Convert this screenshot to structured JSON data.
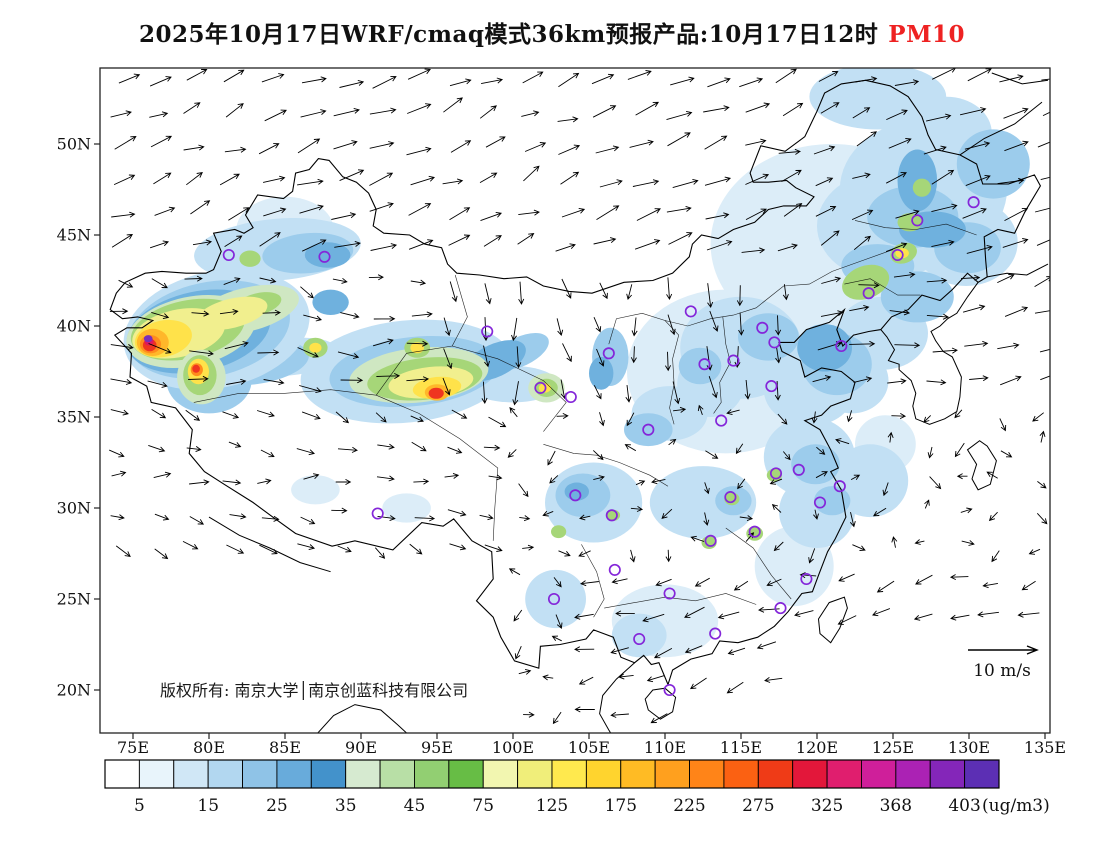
{
  "title": {
    "text": "2025年10月17日WRF/cmaq模式36km预报产品:10月17日12时",
    "pollutant": "PM10",
    "pollutant_color": "#ee2222"
  },
  "copyright": "版权所有: 南京大学│南京创蓝科技有限公司",
  "wind_legend": {
    "label": "10 m/s"
  },
  "axes": {
    "lat_labels": [
      "50N",
      "45N",
      "40N",
      "35N",
      "30N",
      "25N",
      "20N"
    ],
    "lon_labels": [
      "75E",
      "80E",
      "85E",
      "90E",
      "95E",
      "100E",
      "105E",
      "110E",
      "115E",
      "120E",
      "125E",
      "130E",
      "135E"
    ]
  },
  "colorbar": {
    "unit": "(ug/m3)",
    "tick_labels": [
      "5",
      "15",
      "25",
      "35",
      "45",
      "75",
      "125",
      "175",
      "225",
      "275",
      "325",
      "368",
      "403"
    ],
    "colors": [
      "#ffffff",
      "#e8f4fb",
      "#d0e7f6",
      "#b2d7f0",
      "#8fc3e7",
      "#68abdb",
      "#4392cb",
      "#d6ead0",
      "#b8dfa6",
      "#92cf72",
      "#67bd45",
      "#f2f6b0",
      "#f0ee7a",
      "#ffe94e",
      "#ffd42e",
      "#ffbb24",
      "#ffa01e",
      "#ff8418",
      "#fb6112",
      "#ef3b17",
      "#e3173a",
      "#e01e6e",
      "#cf1f9a",
      "#ab22b4",
      "#8426b9",
      "#5c2fb4"
    ]
  },
  "stations": [
    [
      87.6,
      43.8
    ],
    [
      81.3,
      43.9
    ],
    [
      91.1,
      29.7
    ],
    [
      101.8,
      36.6
    ],
    [
      103.8,
      36.1
    ],
    [
      106.3,
      38.5
    ],
    [
      111.7,
      40.8
    ],
    [
      112.6,
      37.9
    ],
    [
      114.5,
      38.1
    ],
    [
      116.4,
      39.9
    ],
    [
      117.2,
      39.1
    ],
    [
      117.0,
      36.7
    ],
    [
      113.7,
      34.8
    ],
    [
      108.9,
      34.3
    ],
    [
      104.1,
      30.7
    ],
    [
      106.5,
      29.6
    ],
    [
      114.3,
      30.6
    ],
    [
      113.0,
      28.2
    ],
    [
      115.9,
      28.7
    ],
    [
      117.3,
      31.9
    ],
    [
      118.8,
      32.1
    ],
    [
      121.5,
      31.2
    ],
    [
      120.2,
      30.3
    ],
    [
      119.3,
      26.1
    ],
    [
      113.3,
      23.1
    ],
    [
      108.3,
      22.8
    ],
    [
      106.7,
      26.6
    ],
    [
      102.7,
      25.0
    ],
    [
      110.3,
      20.0
    ],
    [
      126.6,
      45.8
    ],
    [
      125.3,
      43.9
    ],
    [
      123.4,
      41.8
    ],
    [
      121.6,
      38.9
    ],
    [
      130.3,
      46.8
    ],
    [
      117.6,
      24.5
    ],
    [
      110.3,
      25.3
    ],
    [
      98.3,
      39.7
    ]
  ],
  "field_regions": [
    [
      114,
      37.5,
      6.5,
      4.5,
      0,
      "#dcedf8"
    ],
    [
      121,
      44.5,
      8,
      5.5,
      0,
      "#dcedf8"
    ],
    [
      85,
      45.3,
      3.2,
      1.8,
      0,
      "#dcedf8"
    ],
    [
      110,
      23.8,
      3.5,
      2,
      0,
      "#dcedf8"
    ],
    [
      118.5,
      26.8,
      2.6,
      2.2,
      0,
      "#dcedf8"
    ],
    [
      87,
      31,
      1.6,
      0.8,
      0,
      "#dcedf8"
    ],
    [
      93,
      30,
      1.6,
      0.8,
      0,
      "#dcedf8"
    ],
    [
      124.5,
      33.5,
      2,
      1.6,
      0,
      "#dcedf8"
    ],
    [
      127,
      47.5,
      5.5,
      3.8,
      0,
      "#c2e0f4"
    ],
    [
      124.5,
      45.5,
      4.5,
      3,
      0,
      "#c2e0f4"
    ],
    [
      129.8,
      44.6,
      3.4,
      2.4,
      0,
      "#c2e0f4"
    ],
    [
      124,
      52.6,
      4.5,
      1.8,
      0,
      "#c2e0f4"
    ],
    [
      128.5,
      50.6,
      3,
      2,
      0,
      "#c2e0f4"
    ],
    [
      124.3,
      39.6,
      3,
      2,
      0,
      "#c2e0f4"
    ],
    [
      115,
      38.8,
      4,
      2.8,
      0,
      "#c2e0f4"
    ],
    [
      113,
      36.8,
      2.2,
      1.8,
      0,
      "#c2e0f4"
    ],
    [
      110.3,
      35.2,
      2.5,
      1.5,
      0,
      "#c2e0f4"
    ],
    [
      119.5,
      36.5,
      3,
      2,
      0,
      "#c2e0f4"
    ],
    [
      122.3,
      37,
      2.4,
      1.8,
      0,
      "#c2e0f4"
    ],
    [
      119.5,
      32.8,
      3,
      2.2,
      0,
      "#c2e0f4"
    ],
    [
      112.5,
      30.3,
      3.5,
      2,
      0,
      "#c2e0f4"
    ],
    [
      105.3,
      30.3,
      3.2,
      2.2,
      0,
      "#c2e0f4"
    ],
    [
      108.3,
      23,
      1.8,
      1.2,
      0,
      "#c2e0f4"
    ],
    [
      102.8,
      25,
      2,
      1.6,
      0,
      "#c2e0f4"
    ],
    [
      120,
      29.8,
      2.5,
      2,
      0,
      "#c2e0f4"
    ],
    [
      84.5,
      44.2,
      5.5,
      1.7,
      -5,
      "#c2e0f4"
    ],
    [
      93,
      37.5,
      7,
      2.8,
      -6,
      "#c2e0f4"
    ],
    [
      100,
      36.8,
      3,
      1,
      0,
      "#c2e0f4"
    ],
    [
      85.5,
      38.3,
      3,
      1,
      -8,
      "#c2e0f4"
    ],
    [
      123.5,
      31.5,
      2.5,
      2,
      0,
      "#c2e0f4"
    ],
    [
      131.6,
      48.9,
      2.4,
      1.9,
      0,
      "#9cccec"
    ],
    [
      126.3,
      46,
      3,
      1.7,
      0,
      "#9cccec"
    ],
    [
      129.9,
      44.3,
      2.2,
      1.4,
      0,
      "#9cccec"
    ],
    [
      124,
      43.3,
      2.4,
      1.2,
      0,
      "#9cccec"
    ],
    [
      126.6,
      41.6,
      2.4,
      1.4,
      0,
      "#9cccec"
    ],
    [
      116.8,
      39.4,
      2,
      1.3,
      0,
      "#9cccec"
    ],
    [
      112.3,
      37.8,
      1.4,
      1,
      0,
      "#9cccec"
    ],
    [
      108.9,
      34.3,
      1.6,
      0.9,
      0,
      "#9cccec"
    ],
    [
      106.4,
      38.3,
      1.2,
      1.6,
      0,
      "#9cccec"
    ],
    [
      121.3,
      37.9,
      2.3,
      1.7,
      0,
      "#9cccec"
    ],
    [
      119.9,
      32.4,
      1.6,
      1.1,
      0,
      "#9cccec"
    ],
    [
      114.5,
      30.4,
      1.2,
      0.8,
      0,
      "#9cccec"
    ],
    [
      104.6,
      30.7,
      1.8,
      1.2,
      0,
      "#9cccec"
    ],
    [
      86.5,
      44,
      3,
      1.1,
      -5,
      "#9cccec"
    ],
    [
      80,
      37,
      2.8,
      1.8,
      0,
      "#9cccec"
    ],
    [
      83,
      38,
      3.6,
      1.2,
      -8,
      "#9cccec"
    ],
    [
      93.5,
      37.5,
      5.6,
      1.9,
      -6,
      "#9cccec"
    ],
    [
      100.5,
      38.6,
      2,
      0.8,
      -25,
      "#9cccec"
    ],
    [
      121,
      30.4,
      1.2,
      0.8,
      0,
      "#9cccec"
    ],
    [
      126.6,
      48,
      1.3,
      1.7,
      0,
      "#6fb1de"
    ],
    [
      127.6,
      45.3,
      2.2,
      1,
      0,
      "#6fb1de"
    ],
    [
      87.8,
      43.9,
      1.5,
      0.7,
      0,
      "#6fb1de"
    ],
    [
      88,
      41.3,
      1.2,
      0.7,
      0,
      "#6fb1de"
    ],
    [
      98.8,
      38.1,
      2.2,
      0.9,
      -25,
      "#6fb1de"
    ],
    [
      104.2,
      30.9,
      0.8,
      0.5,
      0,
      "#6fb1de"
    ],
    [
      105.8,
      37.4,
      0.8,
      0.9,
      0,
      "#6fb1de"
    ],
    [
      120.5,
      38.8,
      1.8,
      1.3,
      0,
      "#6fb1de"
    ],
    [
      80.5,
      39.8,
      6.2,
      3.2,
      -12,
      "#c2e0f4"
    ],
    [
      80,
      39.8,
      5.4,
      2.6,
      -12,
      "#9cccec"
    ],
    [
      79.3,
      39.7,
      4.8,
      2.2,
      -12,
      "#6fb1de"
    ],
    [
      82.5,
      40.9,
      3.5,
      1.2,
      -14,
      "#cfe7c2"
    ],
    [
      78.8,
      39.7,
      4.3,
      1.9,
      -12,
      "#cfe7c2"
    ],
    [
      78.6,
      39.8,
      3.8,
      1.6,
      -12,
      "#a6d678"
    ],
    [
      83.2,
      41.2,
      1.6,
      0.6,
      -14,
      "#a6d678"
    ],
    [
      78,
      39.6,
      3.1,
      1.3,
      -12,
      "#f1ef8e"
    ],
    [
      81.5,
      40.7,
      2.4,
      0.8,
      -14,
      "#f1ef8e"
    ],
    [
      77,
      39.3,
      1.9,
      1,
      -12,
      "#ffe24a"
    ],
    [
      76.3,
      39.1,
      1.05,
      0.75,
      0,
      "#ffb72a"
    ],
    [
      76.15,
      39,
      0.7,
      0.5,
      0,
      "#ff8c1c"
    ],
    [
      76.1,
      38.95,
      0.45,
      0.34,
      0,
      "#ef3520"
    ],
    [
      76.05,
      39.15,
      0.3,
      0.22,
      0,
      "#e0175c"
    ],
    [
      76,
      39.3,
      0.28,
      0.2,
      0,
      "#7a2fb9"
    ],
    [
      79.5,
      37.2,
      1.6,
      1.5,
      0,
      "#cfe7c2"
    ],
    [
      79.4,
      37.3,
      1.1,
      1.1,
      0,
      "#a6d678"
    ],
    [
      79.3,
      37.5,
      0.7,
      0.7,
      0,
      "#ffe24a"
    ],
    [
      79.2,
      37.6,
      0.4,
      0.35,
      0,
      "#ff8c1c"
    ],
    [
      79.15,
      37.65,
      0.25,
      0.22,
      0,
      "#ef3520"
    ],
    [
      87,
      38.8,
      0.8,
      0.55,
      0,
      "#a6d678"
    ],
    [
      87,
      38.8,
      0.4,
      0.28,
      0,
      "#ffe24a"
    ],
    [
      82.7,
      43.7,
      0.7,
      0.45,
      0,
      "#a6d678"
    ],
    [
      93.8,
      37.3,
      4.6,
      1.5,
      -6,
      "#cfe7c2"
    ],
    [
      94.2,
      37.1,
      3.8,
      1.15,
      -6,
      "#a6d678"
    ],
    [
      94.6,
      36.9,
      2.8,
      0.85,
      -6,
      "#f1ef8e"
    ],
    [
      95,
      36.6,
      1.6,
      0.6,
      -6,
      "#ffe24a"
    ],
    [
      95,
      36.35,
      0.8,
      0.45,
      0,
      "#ffb72a"
    ],
    [
      94.95,
      36.3,
      0.5,
      0.3,
      0,
      "#ef3520"
    ],
    [
      93.7,
      38.8,
      0.85,
      0.55,
      0,
      "#a6d678"
    ],
    [
      93.7,
      38.8,
      0.45,
      0.3,
      0,
      "#ffe24a"
    ],
    [
      102.2,
      36.6,
      1.2,
      0.8,
      0,
      "#cfe7c2"
    ],
    [
      102.2,
      36.6,
      0.75,
      0.5,
      0,
      "#a6d678"
    ],
    [
      102.1,
      36.6,
      0.4,
      0.26,
      0,
      "#ffe24a"
    ],
    [
      123.2,
      42.4,
      1.6,
      0.9,
      -20,
      "#a6d678"
    ],
    [
      125.7,
      44,
      0.9,
      0.55,
      -20,
      "#a6d678"
    ],
    [
      126.1,
      45.7,
      0.8,
      0.5,
      0,
      "#a6d678"
    ],
    [
      126.9,
      47.6,
      0.6,
      0.5,
      0,
      "#a6d678"
    ],
    [
      125.6,
      44,
      0.45,
      0.28,
      0,
      "#ffe24a"
    ],
    [
      114.4,
      30.5,
      0.5,
      0.35,
      0,
      "#a6d678"
    ],
    [
      112.9,
      28.1,
      0.5,
      0.35,
      0,
      "#a6d678"
    ],
    [
      115.9,
      28.6,
      0.55,
      0.4,
      0,
      "#a6d678"
    ],
    [
      117.2,
      31.8,
      0.5,
      0.35,
      0,
      "#a6d678"
    ],
    [
      103,
      28.7,
      0.5,
      0.35,
      0,
      "#a6d678"
    ],
    [
      106.6,
      29.6,
      0.45,
      0.3,
      0,
      "#a6d678"
    ]
  ]
}
